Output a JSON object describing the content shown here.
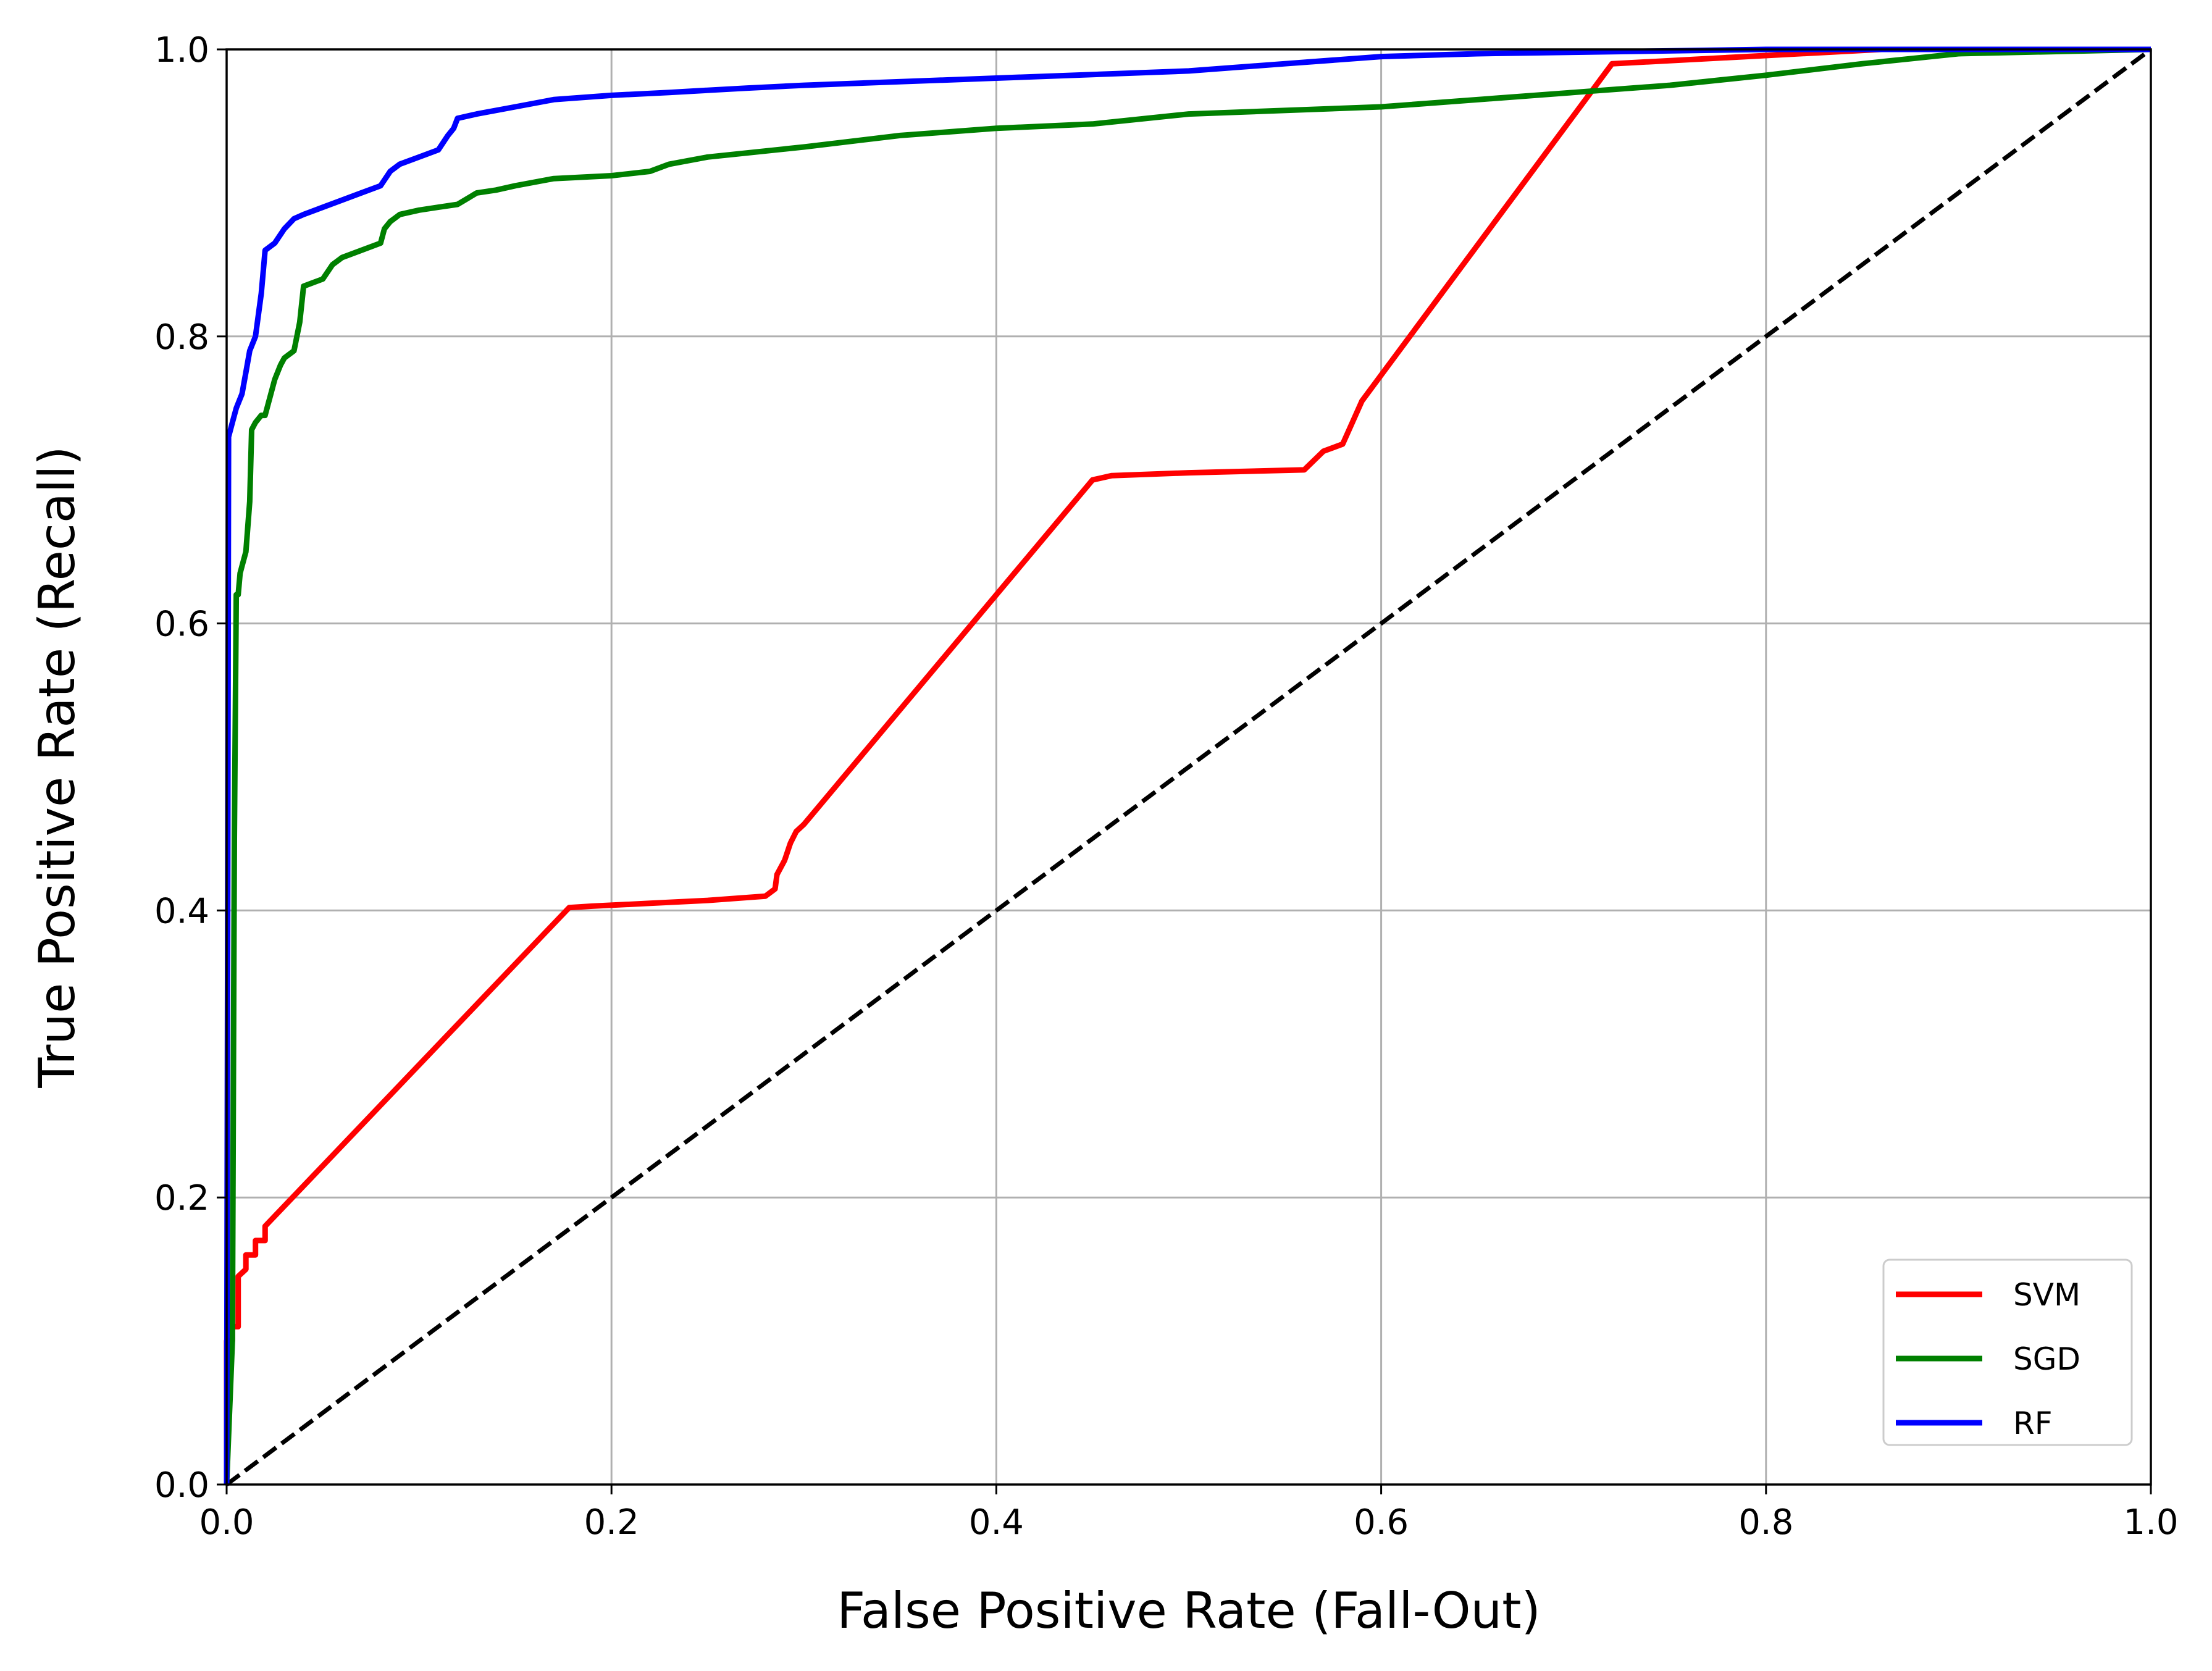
{
  "chart_data": {
    "type": "line",
    "xlabel": "False Positive Rate (Fall-Out)",
    "ylabel": "True Positive Rate (Recall)",
    "xlim": [
      0.0,
      1.0
    ],
    "ylim": [
      0.0,
      1.0
    ],
    "xticks": [
      "0.0",
      "0.2",
      "0.4",
      "0.6",
      "0.8",
      "1.0"
    ],
    "yticks": [
      "0.0",
      "0.2",
      "0.4",
      "0.6",
      "0.8",
      "1.0"
    ],
    "grid": true,
    "legend_position": "lower-right",
    "series": [
      {
        "name": "SVM",
        "color": "#ff0000",
        "x": [
          0.0,
          0.0,
          0.003,
          0.003,
          0.006,
          0.006,
          0.01,
          0.01,
          0.015,
          0.015,
          0.02,
          0.02,
          0.178,
          0.19,
          0.22,
          0.25,
          0.28,
          0.285,
          0.286,
          0.29,
          0.293,
          0.296,
          0.3,
          0.45,
          0.46,
          0.5,
          0.56,
          0.57,
          0.58,
          0.585,
          0.59,
          0.72,
          0.86,
          1.0
        ],
        "y": [
          0.0,
          0.1,
          0.1,
          0.11,
          0.11,
          0.145,
          0.15,
          0.16,
          0.16,
          0.17,
          0.17,
          0.18,
          0.402,
          0.403,
          0.405,
          0.407,
          0.41,
          0.415,
          0.425,
          0.435,
          0.447,
          0.455,
          0.46,
          0.7,
          0.703,
          0.705,
          0.707,
          0.72,
          0.725,
          0.74,
          0.755,
          0.99,
          1.0,
          1.0
        ]
      },
      {
        "name": "SGD",
        "color": "#008000",
        "x": [
          0.0,
          0.003,
          0.004,
          0.005,
          0.006,
          0.007,
          0.008,
          0.01,
          0.012,
          0.013,
          0.015,
          0.018,
          0.02,
          0.025,
          0.028,
          0.03,
          0.035,
          0.038,
          0.04,
          0.04,
          0.05,
          0.055,
          0.06,
          0.07,
          0.08,
          0.082,
          0.085,
          0.09,
          0.1,
          0.11,
          0.12,
          0.13,
          0.14,
          0.15,
          0.17,
          0.2,
          0.22,
          0.23,
          0.25,
          0.3,
          0.35,
          0.4,
          0.45,
          0.5,
          0.6,
          0.7,
          0.75,
          0.8,
          0.85,
          0.9,
          1.0
        ],
        "y": [
          0.0,
          0.1,
          0.45,
          0.62,
          0.62,
          0.635,
          0.64,
          0.65,
          0.685,
          0.735,
          0.74,
          0.745,
          0.745,
          0.77,
          0.78,
          0.785,
          0.79,
          0.81,
          0.835,
          0.835,
          0.84,
          0.85,
          0.855,
          0.86,
          0.865,
          0.875,
          0.88,
          0.885,
          0.888,
          0.89,
          0.892,
          0.9,
          0.902,
          0.905,
          0.91,
          0.912,
          0.915,
          0.92,
          0.925,
          0.932,
          0.94,
          0.945,
          0.948,
          0.955,
          0.96,
          0.97,
          0.975,
          0.982,
          0.99,
          0.997,
          1.0
        ]
      },
      {
        "name": "RF",
        "color": "#0000ff",
        "x": [
          0.0,
          0.001,
          0.003,
          0.005,
          0.008,
          0.01,
          0.012,
          0.015,
          0.018,
          0.02,
          0.025,
          0.03,
          0.035,
          0.04,
          0.05,
          0.06,
          0.07,
          0.08,
          0.085,
          0.09,
          0.1,
          0.11,
          0.115,
          0.118,
          0.12,
          0.13,
          0.15,
          0.17,
          0.2,
          0.23,
          0.27,
          0.3,
          0.4,
          0.5,
          0.55,
          0.6,
          0.65,
          0.7,
          0.8,
          1.0
        ],
        "y": [
          0.0,
          0.73,
          0.74,
          0.75,
          0.76,
          0.775,
          0.79,
          0.8,
          0.83,
          0.86,
          0.865,
          0.875,
          0.882,
          0.885,
          0.89,
          0.895,
          0.9,
          0.905,
          0.915,
          0.92,
          0.925,
          0.93,
          0.94,
          0.945,
          0.952,
          0.955,
          0.96,
          0.965,
          0.968,
          0.97,
          0.973,
          0.975,
          0.98,
          0.985,
          0.99,
          0.995,
          0.997,
          0.998,
          1.0,
          1.0
        ]
      },
      {
        "name": "",
        "color": "#000000",
        "dashed": true,
        "x": [
          0.0,
          1.0
        ],
        "y": [
          0.0,
          1.0
        ]
      }
    ]
  }
}
